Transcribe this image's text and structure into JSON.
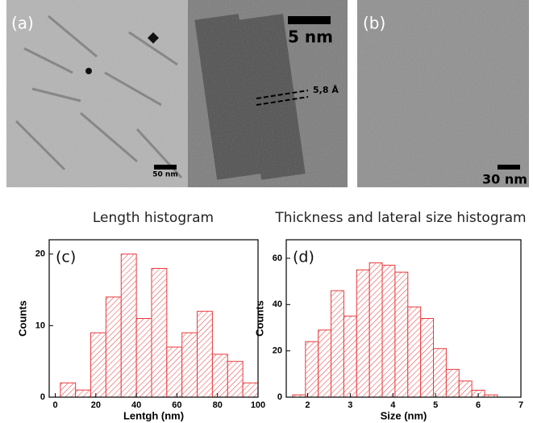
{
  "images": [
    {
      "label": "(a)",
      "scale_bar": "50 nm"
    },
    {
      "scale_bar": "5 nm",
      "annotation": "5,8 Å"
    },
    {
      "label": "(b)",
      "scale_bar": "30 nm"
    }
  ],
  "chart_data": [
    {
      "type": "histogram",
      "title": "Length histogram",
      "panel_label": "(c)",
      "xlabel": "Lentgh (nm)",
      "ylabel": "Counts",
      "bins": [
        2.5,
        10,
        17.5,
        25,
        32.5,
        40,
        47.5,
        55,
        62.5,
        70,
        77.5,
        85,
        92.5,
        100
      ],
      "values": [
        2,
        1,
        9,
        14,
        20,
        11,
        18,
        7,
        9,
        12,
        6,
        5,
        2
      ],
      "color": "#e8393c",
      "xlim": [
        -3,
        100
      ],
      "ylim": [
        0,
        22
      ],
      "xticks": [
        0,
        20,
        40,
        60,
        80,
        100
      ],
      "yticks": [
        0,
        10,
        20
      ]
    },
    {
      "type": "histogram",
      "title": "Thickness and lateral size histogram",
      "panel_label": "(d)",
      "xlabel": "Size (nm)",
      "ylabel": "Counts",
      "bins": [
        1.65,
        1.95,
        2.25,
        2.55,
        2.85,
        3.15,
        3.45,
        3.75,
        4.05,
        4.35,
        4.65,
        4.95,
        5.25,
        5.55,
        5.85,
        6.15,
        6.45
      ],
      "values": [
        1,
        24,
        29,
        46,
        35,
        55,
        58,
        57,
        54,
        39,
        34,
        21,
        12,
        7,
        3,
        1
      ],
      "color": "#e8393c",
      "xlim": [
        1.5,
        7
      ],
      "ylim": [
        0,
        68
      ],
      "xticks": [
        2,
        3,
        4,
        5,
        6,
        7
      ],
      "yticks": [
        0,
        20,
        40,
        60
      ]
    }
  ]
}
